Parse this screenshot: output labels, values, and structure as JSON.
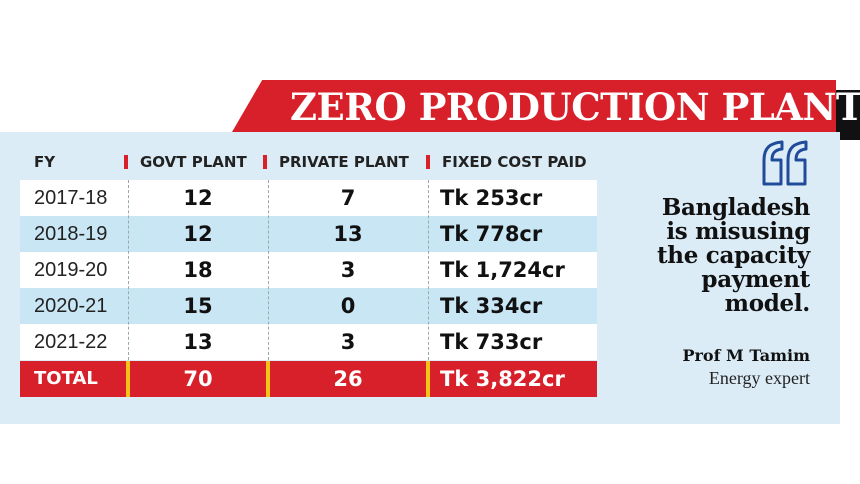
{
  "title": "ZERO PRODUCTION PLANTS",
  "colors": {
    "accent_red": "#d8202a",
    "panel_blue": "#dbecf6",
    "row_light": "#ffffff",
    "row_alt": "#c9e6f4",
    "total_divider": "#f4c21b",
    "quote_icon": "#1f4b9a"
  },
  "chart_data": {
    "type": "table",
    "title": "ZERO PRODUCTION PLANTS",
    "columns": [
      "FY",
      "GOVT PLANT",
      "PRIVATE PLANT",
      "FIXED COST PAID"
    ],
    "rows": [
      {
        "fy": "2017-18",
        "govt": "12",
        "private": "7",
        "cost": "Tk 253cr"
      },
      {
        "fy": "2018-19",
        "govt": "12",
        "private": "13",
        "cost": "Tk 778cr"
      },
      {
        "fy": "2019-20",
        "govt": "18",
        "private": "3",
        "cost": "Tk 1,724cr"
      },
      {
        "fy": "2020-21",
        "govt": "15",
        "private": "0",
        "cost": "Tk 334cr"
      },
      {
        "fy": "2021-22",
        "govt": "13",
        "private": "3",
        "cost": "Tk 733cr"
      }
    ],
    "total": {
      "label": "TOTAL",
      "govt": "70",
      "private": "26",
      "cost": "Tk 3,822cr"
    }
  },
  "quote": {
    "icon": "quote-icon",
    "lines": [
      "Bangladesh",
      "is misusing",
      "the capacity",
      "payment",
      "model."
    ],
    "author": "Prof M Tamim",
    "author_role": "Energy expert"
  }
}
